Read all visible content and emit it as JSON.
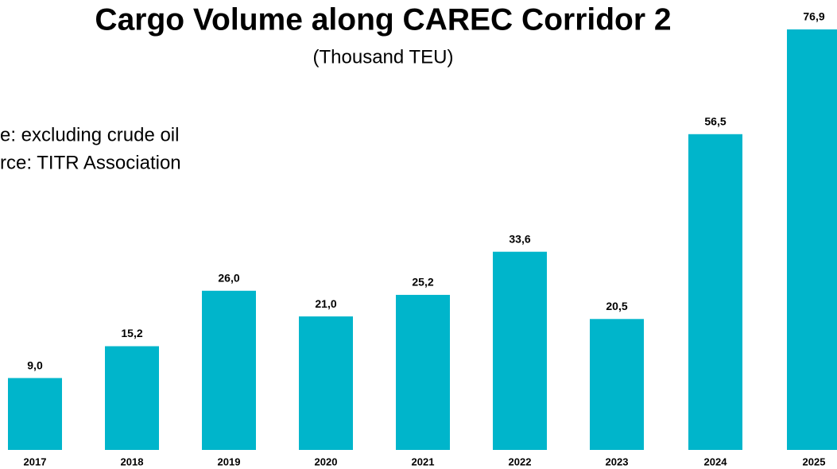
{
  "chart_data": {
    "type": "bar",
    "title": "Cargo Volume along CAREC Corridor 2",
    "subtitle": "(Thousand TEU)",
    "annotations": [
      "e: excluding crude oil",
      "rce: TITR Association"
    ],
    "categories": [
      "2017",
      "2018",
      "2019",
      "2020",
      "2021",
      "2022",
      "2023",
      "2024",
      "2025"
    ],
    "values": [
      9.0,
      15.2,
      26.0,
      21.0,
      25.2,
      33.6,
      20.5,
      56.5,
      76.9
    ],
    "value_labels": [
      "9,0",
      "15,2",
      "26,0",
      "21,0",
      "25,2",
      "33,6",
      "20,5",
      "56,5",
      "76,9"
    ],
    "color": "#00b5cb",
    "ylim": [
      -5,
      80
    ]
  }
}
